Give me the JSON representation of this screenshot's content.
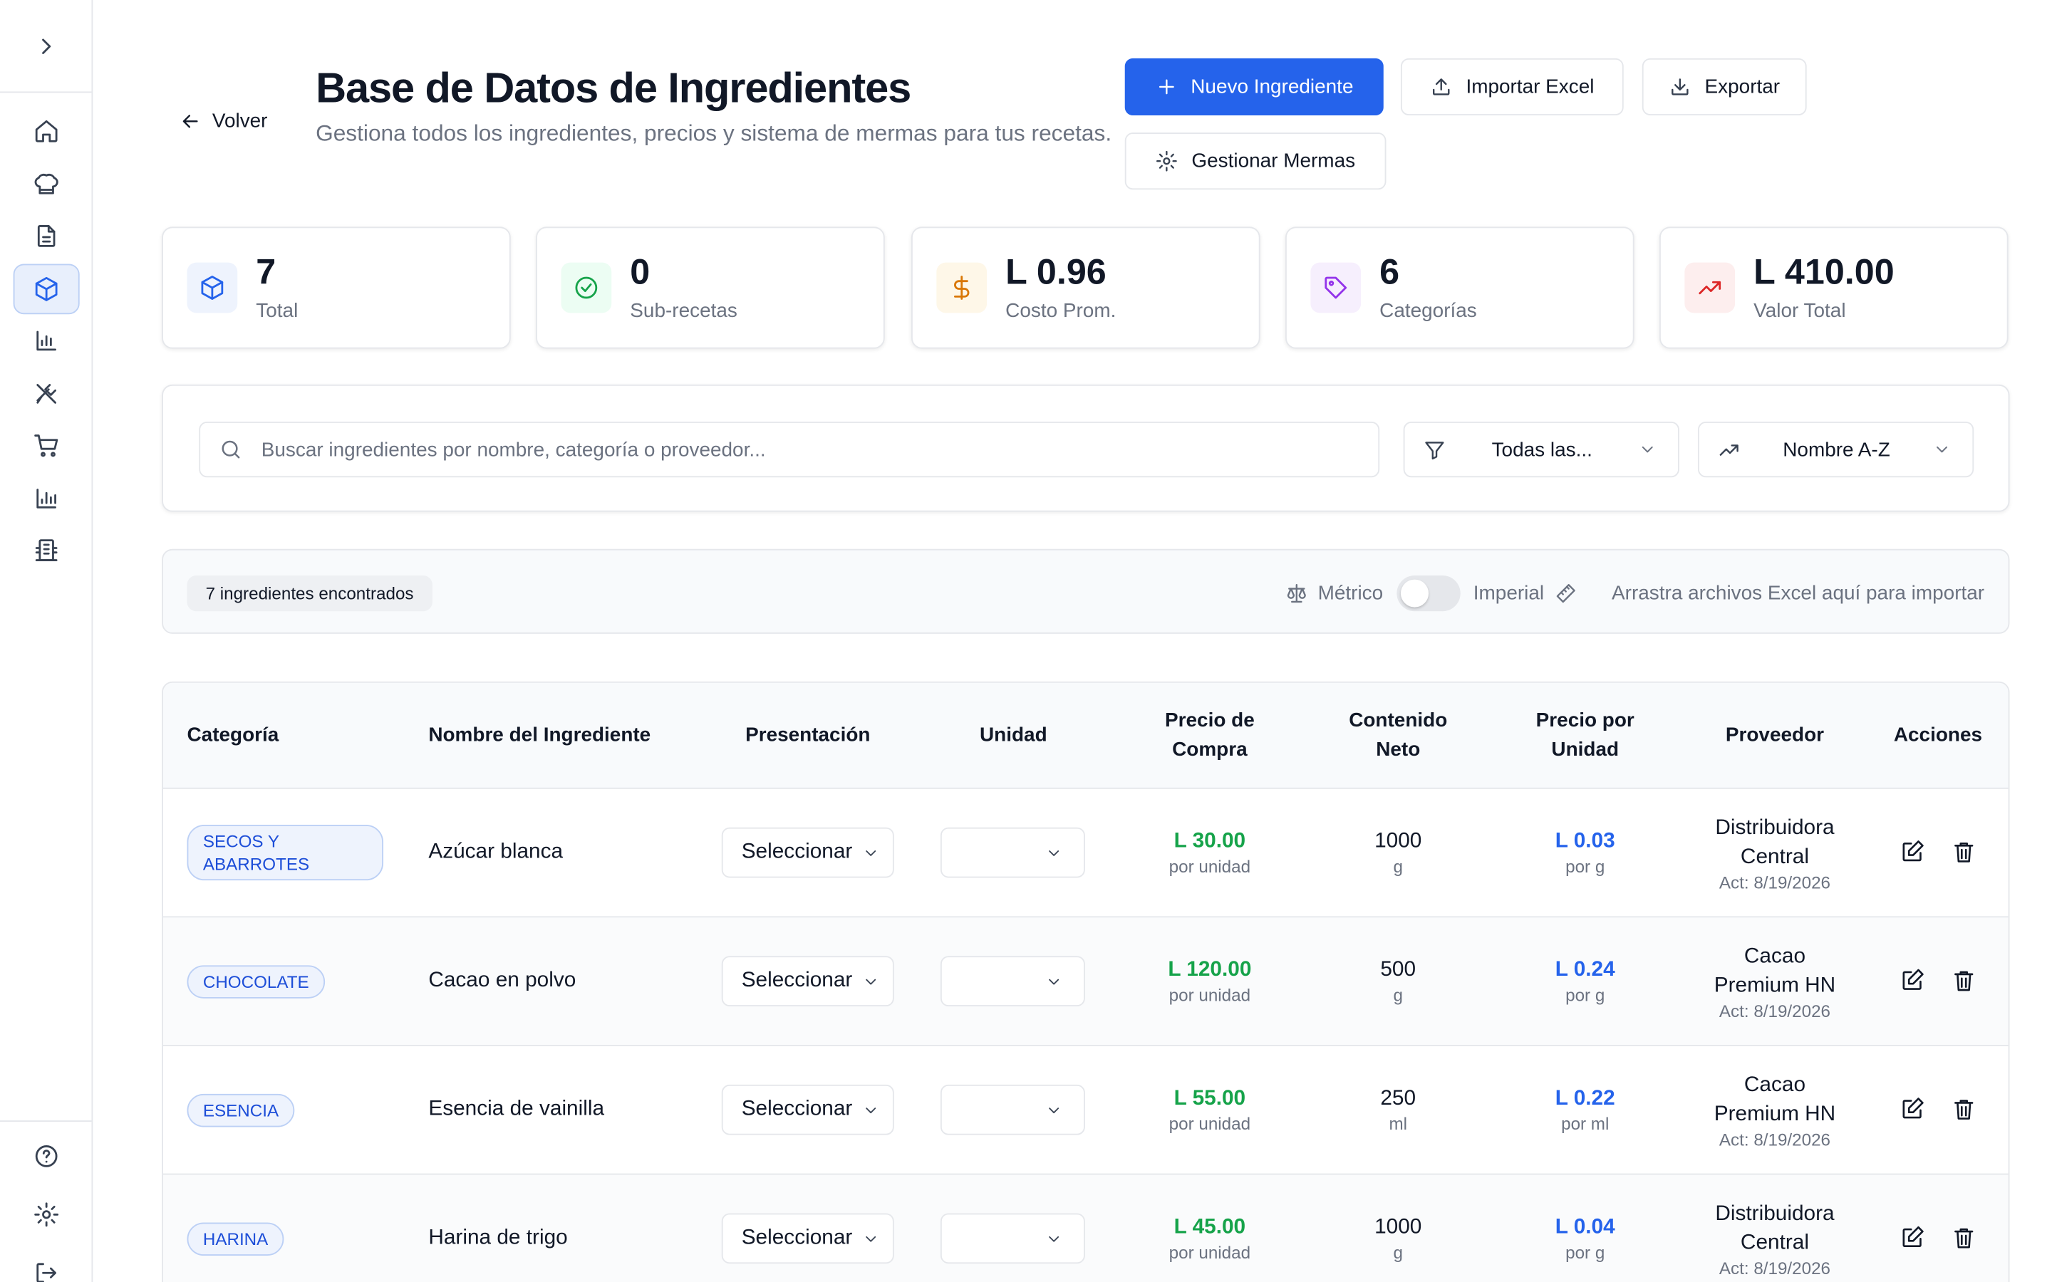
{
  "header": {
    "back_label": "Volver",
    "title": "Base de Datos de Ingredientes",
    "subtitle": "Gestiona todos los ingredientes, precios y sistema de mermas para tus recetas."
  },
  "actions": {
    "new_label": "Nuevo Ingrediente",
    "import_label": "Importar Excel",
    "export_label": "Exportar",
    "mermas_label": "Gestionar Mermas"
  },
  "stats": [
    {
      "value": "7",
      "label": "Total",
      "icon": "box-icon",
      "color": "#2563eb",
      "bg": "#eef3fd"
    },
    {
      "value": "0",
      "label": "Sub-recetas",
      "icon": "check-circle-icon",
      "color": "#16a34a",
      "bg": "#ecfdf3"
    },
    {
      "value": "L 0.96",
      "label": "Costo Prom.",
      "icon": "dollar-icon",
      "color": "#d97706",
      "bg": "#fef7e8"
    },
    {
      "value": "6",
      "label": "Categorías",
      "icon": "tag-icon",
      "color": "#9333ea",
      "bg": "#f6effd"
    },
    {
      "value": "L 410.00",
      "label": "Valor Total",
      "icon": "trending-up-icon",
      "color": "#dc2626",
      "bg": "#fdeeee"
    }
  ],
  "search": {
    "placeholder": "Buscar ingredientes por nombre, categoría o proveedor...",
    "category_filter": "Todas las...",
    "sort": "Nombre A-Z"
  },
  "info": {
    "count_label": "7 ingredientes encontrados",
    "metric_label": "Métrico",
    "imperial_label": "Imperial",
    "drop_hint": "Arrastra archivos Excel aquí para importar"
  },
  "table": {
    "headers": {
      "category": "Categoría",
      "name": "Nombre del Ingrediente",
      "presentation": "Presentación",
      "unit": "Unidad",
      "price1": "Precio de",
      "price2": "Compra",
      "content1": "Contenido",
      "content2": "Neto",
      "unit_price1": "Precio por",
      "unit_price2": "Unidad",
      "provider": "Proveedor",
      "actions": "Acciones"
    },
    "rows": [
      {
        "category1": "SECOS Y",
        "category2": "ABARROTES",
        "name": "Azúcar blanca",
        "presentation": "Seleccionar",
        "price": "L 30.00",
        "price_unit": "por unidad",
        "qty": "1000",
        "qty_unit": "g",
        "unit_price": "L 0.03",
        "unit_price_unit": "por g",
        "provider1": "Distribuidora",
        "provider2": "Central",
        "updated": "Act: 8/19/2026"
      },
      {
        "category1": "CHOCOLATE",
        "category2": "",
        "name": "Cacao en polvo",
        "presentation": "Seleccionar",
        "price": "L 120.00",
        "price_unit": "por unidad",
        "qty": "500",
        "qty_unit": "g",
        "unit_price": "L 0.24",
        "unit_price_unit": "por g",
        "provider1": "Cacao",
        "provider2": "Premium HN",
        "updated": "Act: 8/19/2026"
      },
      {
        "category1": "ESENCIA",
        "category2": "",
        "name": "Esencia de vainilla",
        "presentation": "Seleccionar",
        "price": "L 55.00",
        "price_unit": "por unidad",
        "qty": "250",
        "qty_unit": "ml",
        "unit_price": "L 0.22",
        "unit_price_unit": "por ml",
        "provider1": "Cacao",
        "provider2": "Premium HN",
        "updated": "Act: 8/19/2026"
      },
      {
        "category1": "HARINA",
        "category2": "",
        "name": "Harina de trigo",
        "presentation": "Seleccionar",
        "price": "L 45.00",
        "price_unit": "por unidad",
        "qty": "1000",
        "qty_unit": "g",
        "unit_price": "L 0.04",
        "unit_price_unit": "por g",
        "provider1": "Distribuidora",
        "provider2": "Central",
        "updated": "Act: 8/19/2026"
      }
    ]
  }
}
